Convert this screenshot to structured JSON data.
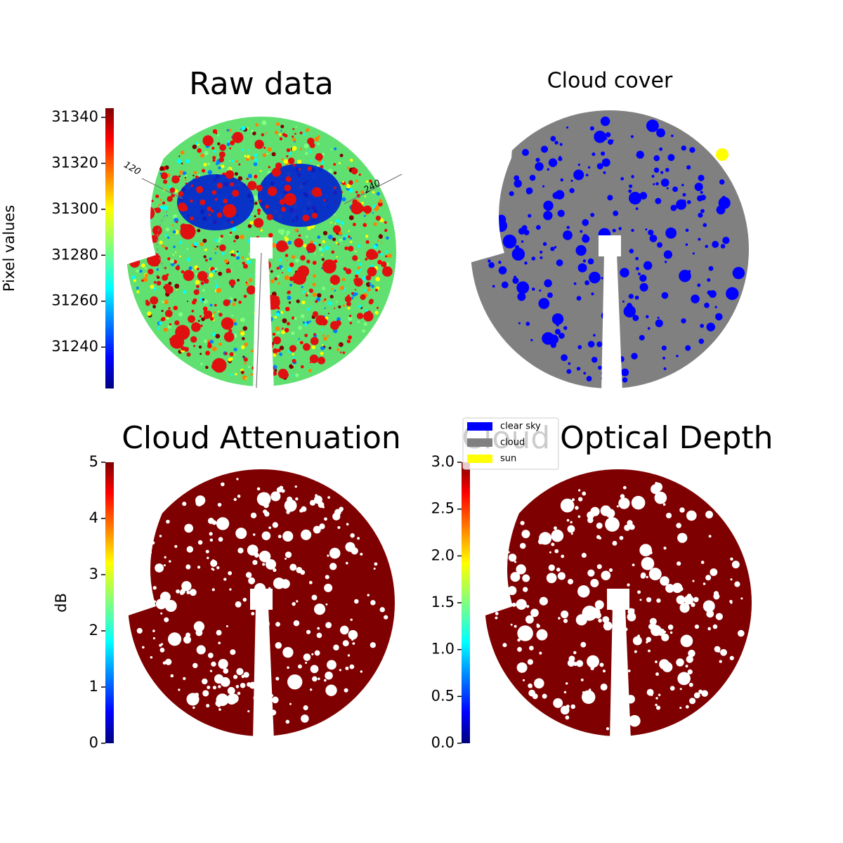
{
  "chart_data": [
    {
      "type": "image",
      "title": "Raw data",
      "colorbar_label": "Pixel values",
      "colormap": "jet",
      "ylim": [
        31222,
        31344
      ],
      "yticks": [
        31240,
        31260,
        31280,
        31300,
        31320,
        31340
      ],
      "annotations": [
        "120",
        "240"
      ]
    },
    {
      "type": "image",
      "title": "Cloud cover",
      "series": [
        {
          "name": "clear sky",
          "color": "#0000ff"
        },
        {
          "name": "cloud",
          "color": "#808080"
        },
        {
          "name": "sun",
          "color": "#ffff00"
        }
      ]
    },
    {
      "type": "image",
      "title": "Cloud Attenuation",
      "colorbar_label": "dB",
      "colormap": "jet",
      "ylim": [
        0,
        5
      ],
      "yticks": [
        0,
        1,
        2,
        3,
        4,
        5
      ]
    },
    {
      "type": "image",
      "title": "Cloud Optical Depth",
      "colormap": "jet",
      "ylim": [
        0,
        3
      ],
      "yticks": [
        {
          "value": 0,
          "label": "0.0"
        },
        0.5,
        {
          "value": 1,
          "label": "1.0"
        },
        1.5,
        {
          "value": 2,
          "label": "2.0"
        },
        2.5,
        {
          "value": 3,
          "label": "3.0"
        }
      ]
    }
  ]
}
